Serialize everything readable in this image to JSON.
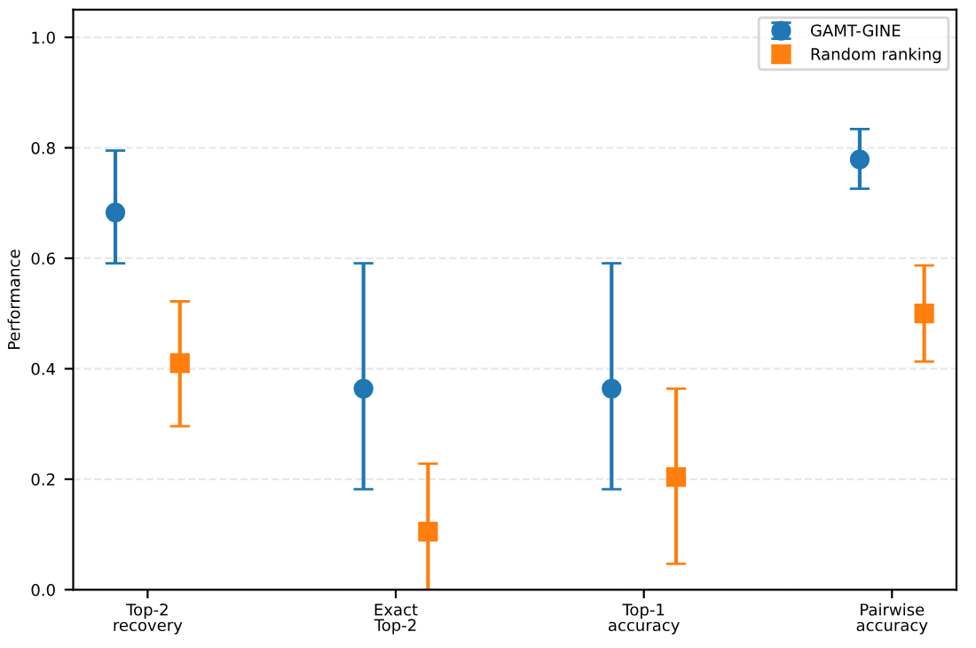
{
  "chart_data": {
    "type": "scatter",
    "ylabel": "Performance",
    "categories": [
      "Top-2\nrecovery",
      "Exact\nTop-2",
      "Top-1\naccuracy",
      "Pairwise\naccuracy"
    ],
    "series": [
      {
        "name": "GAMT-GINE",
        "color": "#1f77b4",
        "marker": "circle",
        "values": [
          0.683,
          0.364,
          0.364,
          0.779
        ],
        "errors": [
          [
            0.591,
            0.795
          ],
          [
            0.182,
            0.591
          ],
          [
            0.182,
            0.591
          ],
          [
            0.726,
            0.834
          ]
        ]
      },
      {
        "name": "Random ranking",
        "color": "#ff7f0e",
        "marker": "square",
        "values": [
          0.41,
          0.105,
          0.204,
          0.5
        ],
        "errors": [
          [
            0.296,
            0.522
          ],
          [
            0.0,
            0.228
          ],
          [
            0.047,
            0.364
          ],
          [
            0.413,
            0.587
          ]
        ]
      }
    ],
    "ylim": [
      0,
      1.05
    ],
    "yticks": [
      {
        "value": 0.0,
        "label": "0.0"
      },
      {
        "value": 0.2,
        "label": "0.2"
      },
      {
        "value": 0.4,
        "label": "0.4"
      },
      {
        "value": 0.6,
        "label": "0.6"
      },
      {
        "value": 0.8,
        "label": "0.8"
      },
      {
        "value": 1.0,
        "label": "1.0"
      }
    ],
    "grid": "y",
    "legend": "top right"
  }
}
